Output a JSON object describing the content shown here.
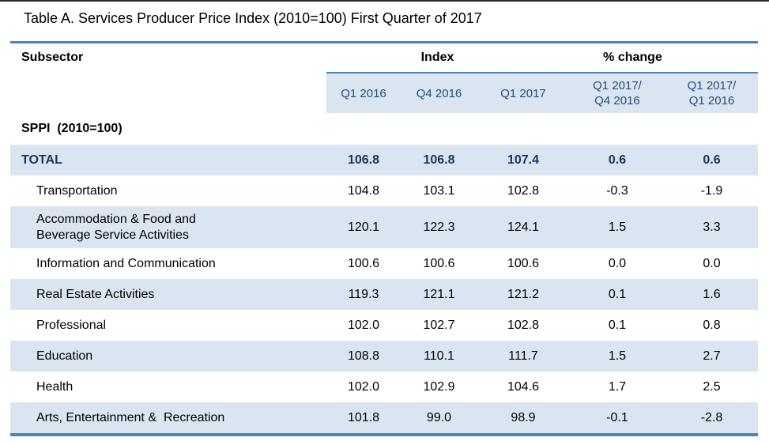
{
  "title": "Table A. Services Producer Price Index (2010=100) First Quarter of 2017",
  "colors": {
    "accent_border": "#4f81bd",
    "band_fill": "#dbe5f1",
    "total_text": "#17365d",
    "quarter_header_text": "#1f4e7c",
    "body_text": "#000000"
  },
  "table": {
    "headers": {
      "subsector": "Subsector",
      "index_group": "Index",
      "pct_group": "% change",
      "columns": [
        "Q1 2016",
        "Q4 2016",
        "Q1 2017",
        "Q1 2017/\nQ4 2016",
        "Q1 2017/\nQ1 2016"
      ]
    },
    "section_label": "SPPI  (2010=100)",
    "rows": [
      {
        "name": "TOTAL",
        "values": [
          "106.8",
          "106.8",
          "107.4",
          "0.6",
          "0.6"
        ]
      },
      {
        "name": "Transportation",
        "values": [
          "104.8",
          "103.1",
          "102.8",
          "-0.3",
          "-1.9"
        ]
      },
      {
        "name": "Accommodation & Food and\nBeverage Service Activities",
        "values": [
          "120.1",
          "122.3",
          "124.1",
          "1.5",
          "3.3"
        ]
      },
      {
        "name": "Information and Communication",
        "values": [
          "100.6",
          "100.6",
          "100.6",
          "0.0",
          "0.0"
        ]
      },
      {
        "name": "Real Estate Activities",
        "values": [
          "119.3",
          "121.1",
          "121.2",
          "0.1",
          "1.6"
        ]
      },
      {
        "name": "Professional",
        "values": [
          "102.0",
          "102.7",
          "102.8",
          "0.1",
          "0.8"
        ]
      },
      {
        "name": "Education",
        "values": [
          "108.8",
          "110.1",
          "111.7",
          "1.5",
          "2.7"
        ]
      },
      {
        "name": "Health",
        "values": [
          "102.0",
          "102.9",
          "104.6",
          "1.7",
          "2.5"
        ]
      },
      {
        "name": "Arts, Entertainment &  Recreation",
        "values": [
          "101.8",
          "99.0",
          "98.9",
          "-0.1",
          "-2.8"
        ]
      }
    ]
  }
}
